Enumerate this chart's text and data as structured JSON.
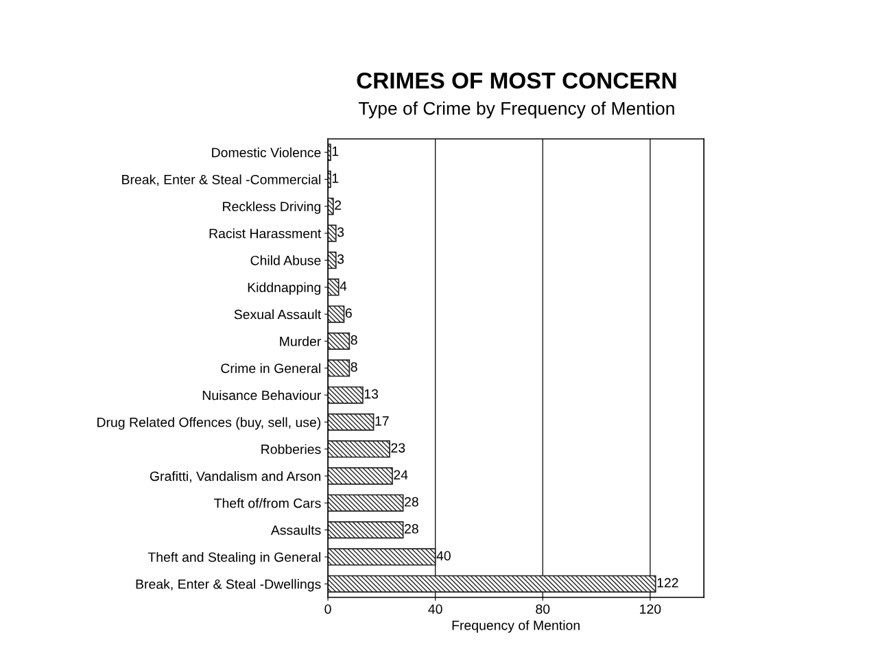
{
  "chart_data": {
    "type": "bar",
    "orientation": "horizontal",
    "title": "CRIMES OF MOST CONCERN",
    "subtitle": "Type of Crime by Frequency of Mention",
    "xlabel": "Frequency of Mention",
    "categories": [
      "Domestic Violence",
      "Break, Enter & Steal -Commercial",
      "Reckless Driving",
      "Racist Harassment",
      "Child Abuse",
      "Kiddnapping",
      "Sexual Assault",
      "Murder",
      "Crime in General",
      "Nuisance Behaviour",
      "Drug Related Offences (buy, sell, use)",
      "Robberies",
      "Grafitti, Vandalism and Arson",
      "Theft of/from Cars",
      "Assaults",
      "Theft and Stealing in General",
      "Break, Enter & Steal -Dwellings"
    ],
    "values": [
      1,
      1,
      2,
      3,
      3,
      4,
      6,
      8,
      8,
      13,
      17,
      23,
      24,
      28,
      28,
      40,
      122
    ],
    "color": "#222222",
    "xlim": [
      0,
      140
    ],
    "xticks": [
      0,
      40,
      80,
      120
    ],
    "grid": "x",
    "data_labels": true
  }
}
